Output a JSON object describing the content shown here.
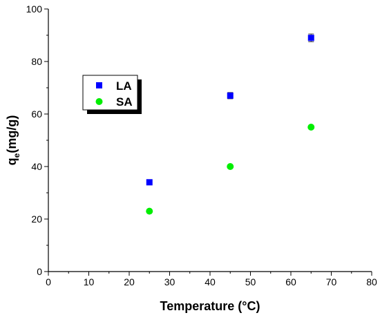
{
  "chart_data": {
    "type": "scatter",
    "xlabel": "Temperature (°C)",
    "ylabel_main": "q",
    "ylabel_sub": "e",
    "ylabel_unit": "(mg/g)",
    "xlim": [
      0,
      80
    ],
    "ylim": [
      0,
      100
    ],
    "x_ticks": [
      "0",
      "10",
      "20",
      "30",
      "40",
      "50",
      "60",
      "70",
      "80"
    ],
    "y_ticks": [
      "0",
      "20",
      "40",
      "60",
      "80",
      "100"
    ],
    "grid": false,
    "legend_position": "upper-left",
    "series": [
      {
        "name": "LA",
        "marker": "square",
        "color": "#0000ff",
        "points": [
          {
            "x": 25,
            "y": 34,
            "err": 0.5
          },
          {
            "x": 45,
            "y": 67,
            "err": 1.2
          },
          {
            "x": 65,
            "y": 89,
            "err": 1.5
          }
        ]
      },
      {
        "name": "SA",
        "marker": "circle",
        "color": "#00ee00",
        "points": [
          {
            "x": 25,
            "y": 23,
            "err": 0
          },
          {
            "x": 45,
            "y": 40,
            "err": 0
          },
          {
            "x": 65,
            "y": 55,
            "err": 0
          }
        ]
      }
    ]
  }
}
